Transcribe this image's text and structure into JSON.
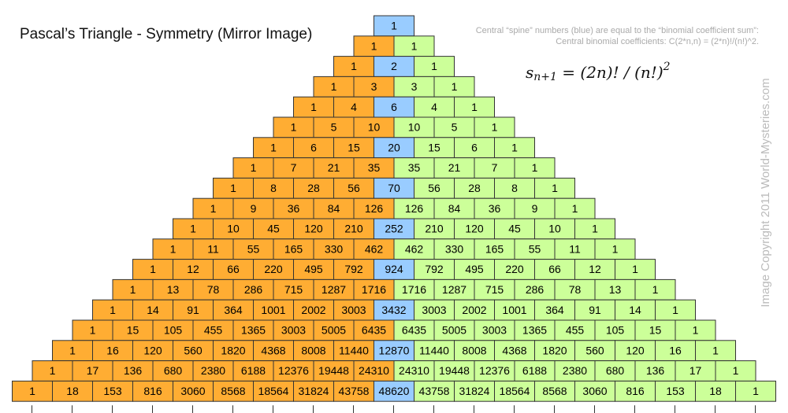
{
  "title": "Pascal’s Triangle - Symmetry (Mirror Image)",
  "note": [
    "Central “spine” numbers (blue) are equal to the “binomial coefficient sum”:",
    "Central binomial coefficients: C(2*n,n) = (2*n)!/(n!)^2."
  ],
  "formula": {
    "base": "s",
    "subscript": "n+1",
    "body": " = (2n)! / (n!)",
    "superscript": "2"
  },
  "copyright": "Image Copyright 2011 World-Mysteries.com",
  "rows": [
    [
      1
    ],
    [
      1,
      1
    ],
    [
      1,
      2,
      1
    ],
    [
      1,
      3,
      3,
      1
    ],
    [
      1,
      4,
      6,
      4,
      1
    ],
    [
      1,
      5,
      10,
      10,
      5,
      1
    ],
    [
      1,
      6,
      15,
      20,
      15,
      6,
      1
    ],
    [
      1,
      7,
      21,
      35,
      35,
      21,
      7,
      1
    ],
    [
      1,
      8,
      28,
      56,
      70,
      56,
      28,
      8,
      1
    ],
    [
      1,
      9,
      36,
      84,
      126,
      126,
      84,
      36,
      9,
      1
    ],
    [
      1,
      10,
      45,
      120,
      210,
      252,
      210,
      120,
      45,
      10,
      1
    ],
    [
      1,
      11,
      55,
      165,
      330,
      462,
      462,
      330,
      165,
      55,
      11,
      1
    ],
    [
      1,
      12,
      66,
      220,
      495,
      792,
      924,
      792,
      495,
      220,
      66,
      12,
      1
    ],
    [
      1,
      13,
      78,
      286,
      715,
      1287,
      1716,
      1716,
      1287,
      715,
      286,
      78,
      13,
      1
    ],
    [
      1,
      14,
      91,
      364,
      1001,
      2002,
      3003,
      3432,
      3003,
      2002,
      1001,
      364,
      91,
      14,
      1
    ],
    [
      1,
      15,
      105,
      455,
      1365,
      3003,
      5005,
      6435,
      6435,
      5005,
      3003,
      1365,
      455,
      105,
      15,
      1
    ],
    [
      1,
      16,
      120,
      560,
      1820,
      4368,
      8008,
      11440,
      12870,
      11440,
      8008,
      4368,
      1820,
      560,
      120,
      16,
      1
    ],
    [
      1,
      17,
      136,
      680,
      2380,
      6188,
      12376,
      19448,
      24310,
      24310,
      19448,
      12376,
      6188,
      2380,
      680,
      136,
      17,
      1
    ],
    [
      1,
      18,
      153,
      816,
      3060,
      8568,
      18564,
      31824,
      43758,
      48620,
      43758,
      31824,
      18564,
      8568,
      3060,
      816,
      153,
      18,
      1
    ]
  ]
}
